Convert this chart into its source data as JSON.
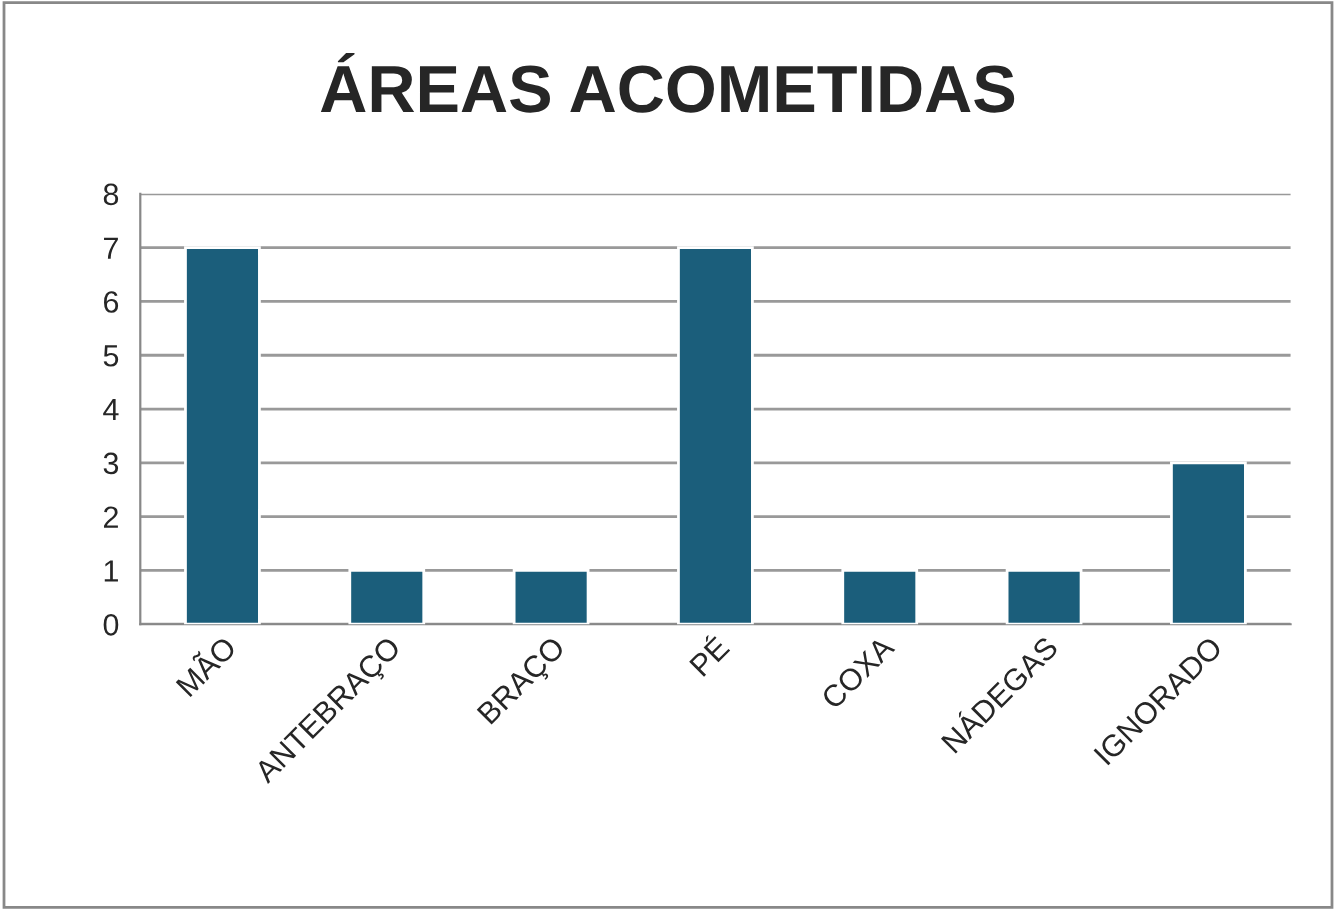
{
  "chart_data": {
    "type": "bar",
    "title": "ÁREAS ACOMETIDAS",
    "categories": [
      "MÃO",
      "ANTEBRAÇO",
      "BRAÇO",
      "PÉ",
      "COXA",
      "NÁDEGAS",
      "IGNORADO"
    ],
    "values": [
      7,
      1,
      1,
      7,
      1,
      1,
      3
    ],
    "color": "#1b5e7b",
    "ylim": [
      0,
      8
    ],
    "yticks": [
      0,
      1,
      2,
      3,
      4,
      5,
      6,
      7,
      8
    ],
    "grid": "y",
    "legend": false
  }
}
